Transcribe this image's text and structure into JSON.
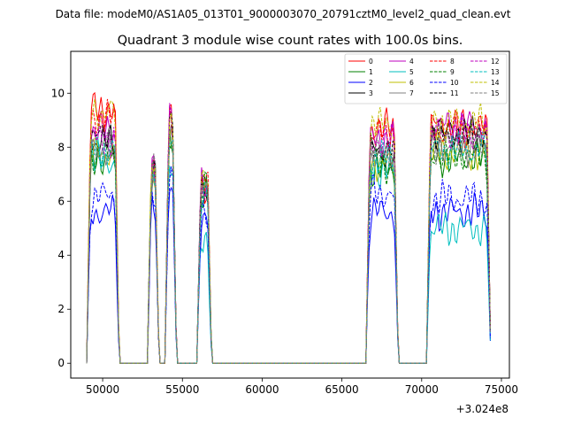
{
  "chart_data": {
    "type": "line",
    "suptitle": "Data file: modeM0/AS1A05_013T01_9000003070_20791cztM0_level2_quad_clean.evt",
    "title": "Quadrant 3 module wise count rates with 100.0s bins.",
    "xlabel": "",
    "ylabel": "",
    "offset_label": "+3.024e8",
    "xlim": [
      48000,
      75500
    ],
    "ylim": [
      -0.55,
      11.55
    ],
    "xticks": [
      50000,
      55000,
      60000,
      65000,
      70000,
      75000
    ],
    "xtick_labels": [
      "50000",
      "55000",
      "60000",
      "65000",
      "70000",
      "75000"
    ],
    "yticks": [
      0,
      2,
      4,
      6,
      8,
      10
    ],
    "ytick_labels": [
      "0",
      "2",
      "4",
      "6",
      "8",
      "10"
    ],
    "grid": false,
    "legend_position": "top-right",
    "segments": [
      [
        49000,
        51000
      ],
      [
        52800,
        53500
      ],
      [
        53900,
        54600
      ],
      [
        55900,
        56800
      ],
      [
        66500,
        68500
      ],
      [
        70300,
        74300
      ]
    ],
    "series": [
      {
        "name": "0",
        "color": "#ff0000",
        "dash": "solid",
        "seg_levels": [
          9.4,
          7.3,
          9.0,
          6.6,
          8.7,
          8.8
        ]
      },
      {
        "name": "1",
        "color": "#008000",
        "dash": "solid",
        "seg_levels": [
          7.6,
          7.0,
          8.6,
          6.4,
          7.2,
          7.6
        ]
      },
      {
        "name": "2",
        "color": "#0000ff",
        "dash": "solid",
        "seg_levels": [
          5.6,
          5.9,
          6.8,
          5.2,
          5.6,
          5.6
        ]
      },
      {
        "name": "3",
        "color": "#000000",
        "dash": "solid",
        "seg_levels": [
          8.2,
          7.2,
          8.8,
          6.5,
          7.8,
          8.5
        ]
      },
      {
        "name": "4",
        "color": "#bf00bf",
        "dash": "solid",
        "seg_levels": [
          8.6,
          7.3,
          9.0,
          6.6,
          8.3,
          8.8
        ]
      },
      {
        "name": "5",
        "color": "#00bfbf",
        "dash": "solid",
        "seg_levels": [
          7.5,
          7.0,
          7.2,
          4.6,
          7.2,
          5.0
        ]
      },
      {
        "name": "6",
        "color": "#bfbf00",
        "dash": "solid",
        "seg_levels": [
          7.8,
          7.4,
          8.4,
          6.6,
          7.4,
          7.8
        ]
      },
      {
        "name": "7",
        "color": "#808080",
        "dash": "solid",
        "seg_levels": [
          7.9,
          7.2,
          8.6,
          6.5,
          7.7,
          8.0
        ]
      },
      {
        "name": "8",
        "color": "#ff0000",
        "dash": "dashed",
        "seg_levels": [
          9.1,
          7.3,
          9.2,
          6.7,
          8.5,
          8.6
        ]
      },
      {
        "name": "9",
        "color": "#008000",
        "dash": "dashed",
        "seg_levels": [
          7.7,
          7.1,
          8.6,
          6.4,
          7.3,
          7.7
        ]
      },
      {
        "name": "10",
        "color": "#0000ff",
        "dash": "dashed",
        "seg_levels": [
          6.2,
          6.1,
          7.0,
          5.4,
          6.3,
          6.1
        ]
      },
      {
        "name": "11",
        "color": "#000000",
        "dash": "dashed",
        "seg_levels": [
          8.4,
          7.2,
          8.9,
          6.5,
          7.9,
          8.4
        ]
      },
      {
        "name": "12",
        "color": "#bf00bf",
        "dash": "dashed",
        "seg_levels": [
          8.3,
          7.3,
          9.0,
          6.6,
          8.2,
          8.5
        ]
      },
      {
        "name": "13",
        "color": "#00bfbf",
        "dash": "dashed",
        "seg_levels": [
          7.9,
          7.2,
          8.5,
          6.4,
          7.6,
          7.9
        ]
      },
      {
        "name": "14",
        "color": "#bfbf00",
        "dash": "dashed",
        "seg_levels": [
          9.3,
          7.6,
          9.1,
          6.8,
          8.8,
          8.9
        ]
      },
      {
        "name": "15",
        "color": "#808080",
        "dash": "dashed",
        "seg_levels": [
          8.1,
          7.2,
          8.7,
          6.5,
          7.8,
          8.1
        ]
      }
    ]
  }
}
